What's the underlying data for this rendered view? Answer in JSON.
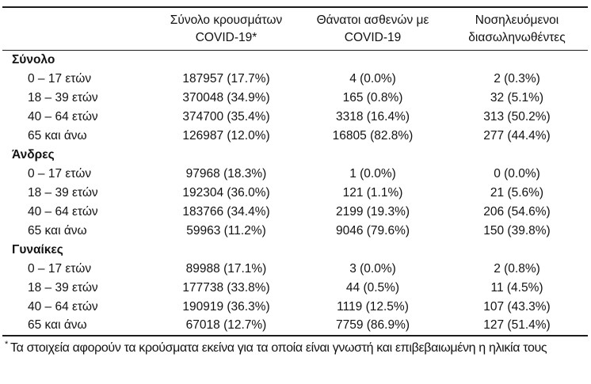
{
  "colors": {
    "background": "#ffffff",
    "text": "#121212",
    "rule": "#1c1c1c"
  },
  "table": {
    "header": {
      "col2": {
        "line1": "Σύνολο κρουσμάτων",
        "line2": "COVID-19*"
      },
      "col3": {
        "line1": "Θάνατοι ασθενών με",
        "line2": "COVID-19"
      },
      "col4": {
        "line1": "Νοσηλευόμενοι",
        "line2": "διασωληνωθέντες"
      }
    },
    "groups": [
      {
        "label": "Σύνολο",
        "rows": [
          {
            "age": "0 – 17 ετών",
            "cases": "187957 (17.7%)",
            "deaths": "4 (0.0%)",
            "intubated": "2 (0.3%)"
          },
          {
            "age": "18 – 39 ετών",
            "cases": "370048 (34.9%)",
            "deaths": "165 (0.8%)",
            "intubated": "32 (5.1%)"
          },
          {
            "age": "40 – 64 ετών",
            "cases": "374700 (35.4%)",
            "deaths": "3318 (16.4%)",
            "intubated": "313 (50.2%)"
          },
          {
            "age": "65 και άνω",
            "cases": "126987 (12.0%)",
            "deaths": "16805 (82.8%)",
            "intubated": "277 (44.4%)"
          }
        ]
      },
      {
        "label": "Άνδρες",
        "rows": [
          {
            "age": "0 – 17 ετών",
            "cases": "97968 (18.3%)",
            "deaths": "1 (0.0%)",
            "intubated": "0 (0.0%)"
          },
          {
            "age": "18 – 39 ετών",
            "cases": "192304 (36.0%)",
            "deaths": "121 (1.1%)",
            "intubated": "21 (5.6%)"
          },
          {
            "age": "40 – 64 ετών",
            "cases": "183766 (34.4%)",
            "deaths": "2199 (19.3%)",
            "intubated": "206 (54.6%)"
          },
          {
            "age": "65 και άνω",
            "cases": "59963 (11.2%)",
            "deaths": "9046 (79.6%)",
            "intubated": "150 (39.8%)"
          }
        ]
      },
      {
        "label": "Γυναίκες",
        "rows": [
          {
            "age": "0 – 17 ετών",
            "cases": "89988 (17.1%)",
            "deaths": "3 (0.0%)",
            "intubated": "2 (0.8%)"
          },
          {
            "age": "18 – 39 ετών",
            "cases": "177738 (33.8%)",
            "deaths": "44 (0.5%)",
            "intubated": "11 (4.5%)"
          },
          {
            "age": "40 – 64 ετών",
            "cases": "190919 (36.3%)",
            "deaths": "1119 (12.5%)",
            "intubated": "107 (43.3%)"
          },
          {
            "age": "65 και άνω",
            "cases": "67018 (12.7%)",
            "deaths": "7759 (86.9%)",
            "intubated": "127 (51.4%)"
          }
        ]
      }
    ]
  },
  "footnote": {
    "marker": "*",
    "text": "Τα στοιχεία αφορούν τα κρούσματα εκείνα για τα οποία είναι γνωστή και επιβεβαιωμένη η ηλικία τους"
  }
}
